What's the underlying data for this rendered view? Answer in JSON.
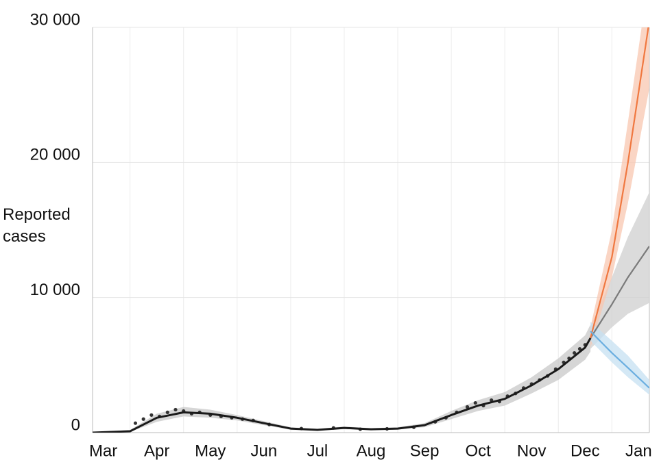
{
  "chart_data": {
    "type": "line",
    "y_label": "Reported cases",
    "categories": [
      "Mar",
      "Apr",
      "May",
      "Jun",
      "Jul",
      "Aug",
      "Sep",
      "Oct",
      "Nov",
      "Dec",
      "Jan"
    ],
    "xlim": [
      0.3,
      10.7
    ],
    "ylim": [
      0,
      30000
    ],
    "yticks": [
      0,
      {
        "value": 10000,
        "label": "10 000"
      },
      {
        "value": 20000,
        "label": "20 000"
      },
      {
        "value": 30000,
        "label": "30 000"
      }
    ],
    "grid": true,
    "x": [
      0.3,
      1,
      1.5,
      2,
      2.5,
      3,
      3.5,
      4,
      4.5,
      5,
      5.5,
      6,
      6.5,
      7,
      7.5,
      8,
      8.5,
      9,
      9.5,
      9.6,
      10,
      10.3,
      10.7
    ],
    "series": [
      {
        "color": "#1a1a1a",
        "band_color": "#c8c8c8",
        "values": [
          0,
          100,
          1100,
          1500,
          1400,
          1100,
          700,
          300,
          200,
          350,
          250,
          300,
          550,
          1300,
          2000,
          2500,
          3500,
          4700,
          6300,
          7000,
          null,
          null,
          null
        ],
        "lower": [
          0,
          50,
          800,
          1200,
          1100,
          900,
          550,
          200,
          150,
          250,
          180,
          220,
          400,
          1000,
          1600,
          2000,
          2900,
          3900,
          5400,
          6000,
          null,
          null,
          null
        ],
        "upper": [
          0,
          200,
          1400,
          1900,
          1700,
          1300,
          850,
          400,
          280,
          450,
          330,
          400,
          700,
          1600,
          2400,
          3000,
          4100,
          5500,
          7200,
          8000,
          null,
          null,
          null
        ]
      },
      {
        "color": "#7a7a7a",
        "band_color": "#cfcfcf",
        "values": [
          null,
          null,
          null,
          null,
          null,
          null,
          null,
          null,
          null,
          null,
          null,
          null,
          null,
          null,
          null,
          null,
          null,
          null,
          null,
          7000,
          9500,
          11500,
          13800
        ],
        "lower": [
          null,
          null,
          null,
          null,
          null,
          null,
          null,
          null,
          null,
          null,
          null,
          null,
          null,
          null,
          null,
          null,
          null,
          null,
          null,
          6200,
          7800,
          8800,
          9600
        ],
        "upper": [
          null,
          null,
          null,
          null,
          null,
          null,
          null,
          null,
          null,
          null,
          null,
          null,
          null,
          null,
          null,
          null,
          null,
          null,
          null,
          7800,
          11500,
          14500,
          17800
        ]
      },
      {
        "color": "#f07840",
        "band_color": "#f8c7b0",
        "values": [
          null,
          null,
          null,
          null,
          null,
          null,
          null,
          null,
          null,
          null,
          null,
          null,
          null,
          null,
          null,
          null,
          null,
          null,
          null,
          7000,
          13000,
          20000,
          30500
        ],
        "lower": [
          null,
          null,
          null,
          null,
          null,
          null,
          null,
          null,
          null,
          null,
          null,
          null,
          null,
          null,
          null,
          null,
          null,
          null,
          null,
          6300,
          11500,
          17000,
          25500
        ],
        "upper": [
          null,
          null,
          null,
          null,
          null,
          null,
          null,
          null,
          null,
          null,
          null,
          null,
          null,
          null,
          null,
          null,
          null,
          null,
          null,
          7800,
          15000,
          23000,
          34000
        ]
      },
      {
        "color": "#6aaee0",
        "band_color": "#c6e0f2",
        "values": [
          null,
          null,
          null,
          null,
          null,
          null,
          null,
          null,
          null,
          null,
          null,
          null,
          null,
          null,
          null,
          null,
          null,
          null,
          null,
          7500,
          5900,
          4800,
          3300
        ],
        "lower": [
          null,
          null,
          null,
          null,
          null,
          null,
          null,
          null,
          null,
          null,
          null,
          null,
          null,
          null,
          null,
          null,
          null,
          null,
          null,
          6800,
          5200,
          4100,
          2800
        ],
        "upper": [
          null,
          null,
          null,
          null,
          null,
          null,
          null,
          null,
          null,
          null,
          null,
          null,
          null,
          null,
          null,
          null,
          null,
          null,
          null,
          8200,
          6800,
          5700,
          3900
        ]
      }
    ],
    "observations": {
      "color": "#333333",
      "x": [
        1.1,
        1.25,
        1.4,
        1.55,
        1.7,
        1.85,
        2.0,
        2.15,
        2.3,
        2.5,
        2.7,
        2.9,
        3.1,
        3.3,
        3.6,
        4.2,
        4.8,
        5.3,
        5.8,
        6.3,
        6.7,
        6.9,
        7.1,
        7.3,
        7.45,
        7.6,
        7.75,
        7.9,
        8.05,
        8.2,
        8.35,
        8.5,
        8.65,
        8.8,
        8.95,
        9.1,
        9.2,
        9.3,
        9.4,
        9.5
      ],
      "values": [
        700,
        1000,
        1300,
        1200,
        1500,
        1700,
        1600,
        1400,
        1500,
        1300,
        1200,
        1100,
        1000,
        900,
        600,
        300,
        350,
        250,
        280,
        400,
        800,
        1100,
        1500,
        1900,
        2200,
        2000,
        2400,
        2300,
        2700,
        2900,
        3300,
        3600,
        3900,
        4200,
        4700,
        5200,
        5500,
        5900,
        6200,
        6500
      ]
    }
  }
}
